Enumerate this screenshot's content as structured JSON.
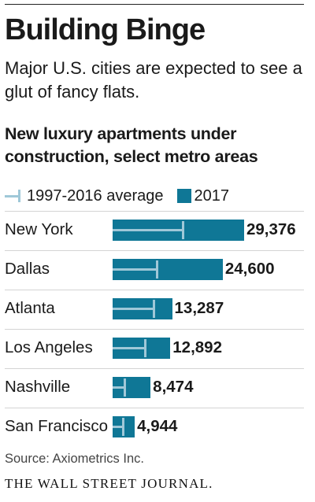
{
  "title": "Building Binge",
  "subtitle": "Major U.S. cities are expected to see a glut of fancy flats.",
  "chart_title": "New luxury apartments under construction, select metro areas",
  "legend": {
    "avg_label": "1997-2016 average",
    "current_label": "2017"
  },
  "colors": {
    "bar_2017": "#0f7796",
    "average_marker": "#9fc8d8"
  },
  "chart_data": {
    "type": "bar",
    "orientation": "horizontal",
    "title": "New luxury apartments under construction, select metro areas",
    "categories": [
      "New York",
      "Dallas",
      "Atlanta",
      "Los Angeles",
      "Nashville",
      "San Francisco"
    ],
    "series": [
      {
        "name": "2017",
        "values": [
          29376,
          24600,
          13287,
          12892,
          8474,
          4944
        ],
        "labels": [
          "29,376",
          "24,600",
          "13,287",
          "12,892",
          "8,474",
          "4,944"
        ]
      },
      {
        "name": "1997-2016 average",
        "values": [
          15700,
          9900,
          9300,
          7300,
          2800,
          2300
        ]
      }
    ],
    "xlim": [
      0,
      29376
    ],
    "grid": false,
    "legend_position": "top-left"
  },
  "source": "Source: Axiometrics Inc.",
  "publisher": "THE WALL STREET JOURNAL."
}
